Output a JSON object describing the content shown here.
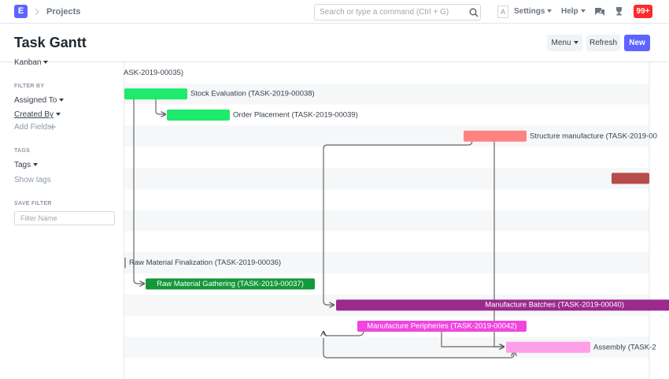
{
  "navbar": {
    "logo": "E",
    "breadcrumb": "Projects",
    "search_placeholder": "Search or type a command (Ctrl + G)",
    "avatar": "A",
    "settings": "Settings",
    "help": "Help",
    "notifications": "99+"
  },
  "page_head": {
    "title": "Task Gantt",
    "buttons": [
      "Menu",
      "Refresh",
      "New"
    ]
  },
  "sidebar": {
    "view": "Kanban",
    "filter_heading": "FILTER BY",
    "filters": [
      "Assigned To",
      "Created By"
    ],
    "add_fields": "Add Fields",
    "tags_heading": "TAGS",
    "tags": "Tags",
    "show_tags": "Show tags",
    "save_filter_heading": "SAVE FILTER",
    "filter_name_placeholder": "Filter Name"
  },
  "gantt": {
    "labels": [
      "ASK-2019-00035)",
      "Stock Evaluation (TASK-2019-00038)",
      "Order Placement (TASK-2019-00039)",
      "Structure manufacture (TASK-2019-00",
      "Raw Material Finalization (TASK-2019-00036)",
      "Raw Material Gathering (TASK-2019-00037)",
      "Manufacture Batches (TASK-2019-00040)",
      "Manufacture Peripheries (TASK-2019-00042)",
      "Assembly (TASK-2"
    ]
  }
}
